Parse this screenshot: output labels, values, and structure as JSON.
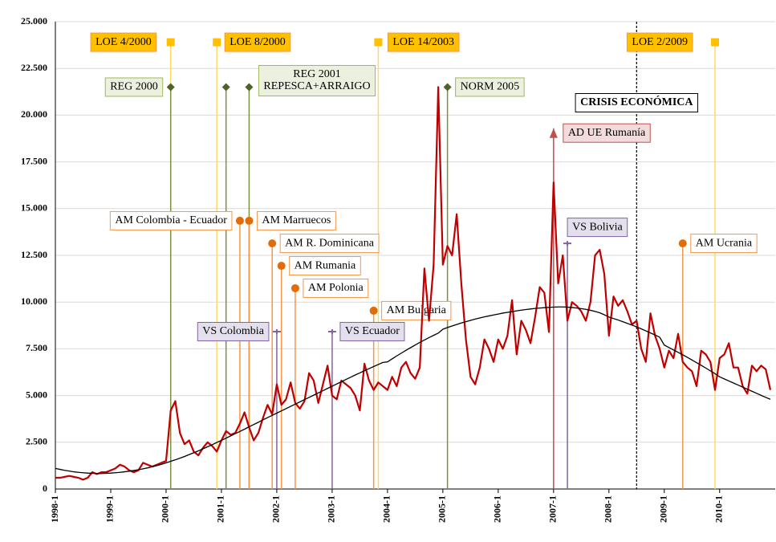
{
  "chart_data": {
    "type": "line",
    "categories": [
      "1998-1",
      null,
      null,
      null,
      null,
      null,
      null,
      null,
      null,
      null,
      null,
      null,
      "1999-1",
      null,
      null,
      null,
      null,
      null,
      null,
      null,
      null,
      null,
      null,
      null,
      "2000-1",
      null,
      null,
      null,
      null,
      null,
      null,
      null,
      null,
      null,
      null,
      null,
      "2001-1",
      null,
      null,
      null,
      null,
      null,
      null,
      null,
      null,
      null,
      null,
      null,
      "2002-1",
      null,
      null,
      null,
      null,
      null,
      null,
      null,
      null,
      null,
      null,
      null,
      "2003-1",
      null,
      null,
      null,
      null,
      null,
      null,
      null,
      null,
      null,
      null,
      null,
      "2004-1",
      null,
      null,
      null,
      null,
      null,
      null,
      null,
      null,
      null,
      null,
      null,
      "2005-1",
      null,
      null,
      null,
      null,
      null,
      null,
      null,
      null,
      null,
      null,
      null,
      "2006-1",
      null,
      null,
      null,
      null,
      null,
      null,
      null,
      null,
      null,
      null,
      null,
      "2007-1",
      null,
      null,
      null,
      null,
      null,
      null,
      null,
      null,
      null,
      null,
      null,
      "2008-1",
      null,
      null,
      null,
      null,
      null,
      null,
      null,
      null,
      null,
      null,
      null,
      "2009-1",
      null,
      null,
      null,
      null,
      null,
      null,
      null,
      null,
      null,
      null,
      null,
      "2010-1",
      null,
      null,
      null,
      null,
      null,
      null,
      null,
      null,
      null,
      null,
      null
    ],
    "series": [
      {
        "color": "#c00000",
        "values": [
          600,
          600,
          650,
          700,
          650,
          600,
          500,
          600,
          900,
          800,
          900,
          900,
          1000,
          1100,
          1300,
          1200,
          1000,
          900,
          1000,
          1400,
          1300,
          1200,
          1300,
          1400,
          1500,
          4200,
          4700,
          3000,
          2400,
          2600,
          2000,
          1800,
          2200,
          2500,
          2300,
          2000,
          2600,
          3100,
          2900,
          3000,
          3500,
          4100,
          3300,
          2600,
          3000,
          3800,
          4500,
          4000,
          5600,
          4500,
          4800,
          5700,
          4600,
          4300,
          4700,
          6200,
          5800,
          4600,
          5600,
          6600,
          5000,
          4800,
          5800,
          5600,
          5400,
          5000,
          4200,
          6700,
          5800,
          5300,
          5700,
          5500,
          5300,
          6000,
          5500,
          6500,
          6800,
          6200,
          5900,
          6500,
          11800,
          9000,
          12000,
          21500,
          12000,
          13000,
          12500,
          14700,
          11000,
          8000,
          6000,
          5600,
          6500,
          8000,
          7500,
          6800,
          8000,
          7500,
          8200,
          10100,
          7200,
          9000,
          8500,
          7800,
          9200,
          10800,
          10500,
          8400,
          16400,
          11000,
          12500,
          9000,
          10000,
          9800,
          9500,
          9000,
          10000,
          12500,
          12800,
          11500,
          8200,
          10300,
          9800,
          10100,
          9500,
          8800,
          9000,
          7500,
          6800,
          9400,
          8200,
          7500,
          6500,
          7400,
          7000,
          8300,
          6800,
          6500,
          6300,
          5500,
          7400,
          7200,
          6800,
          5300,
          7000,
          7200,
          7800,
          6500,
          6500,
          5500,
          5100,
          6600,
          6300,
          6600,
          6400,
          5300
        ]
      },
      {
        "color": "#000000",
        "values": [
          1100,
          1050,
          1000,
          960,
          920,
          890,
          870,
          850,
          840,
          830,
          830,
          840,
          850,
          870,
          890,
          920,
          950,
          990,
          1030,
          1080,
          1130,
          1190,
          1250,
          1320,
          1400,
          1480,
          1560,
          1650,
          1740,
          1840,
          1940,
          2040,
          2150,
          2260,
          2370,
          2490,
          2600,
          2720,
          2840,
          2960,
          3080,
          3200,
          3330,
          3450,
          3570,
          3700,
          3820,
          3940,
          4060,
          4180,
          4300,
          4420,
          4540,
          4660,
          4780,
          4900,
          5020,
          5140,
          5260,
          5380,
          5500,
          5620,
          5740,
          5860,
          5980,
          6100,
          6210,
          6330,
          6440,
          6550,
          6660,
          6770,
          6800,
          6960,
          7120,
          7270,
          7420,
          7560,
          7700,
          7840,
          7970,
          8100,
          8220,
          8340,
          8550,
          8640,
          8720,
          8800,
          8880,
          8950,
          9020,
          9090,
          9150,
          9210,
          9260,
          9310,
          9360,
          9410,
          9450,
          9490,
          9530,
          9570,
          9600,
          9630,
          9660,
          9680,
          9700,
          9720,
          9730,
          9740,
          9740,
          9730,
          9710,
          9680,
          9650,
          9610,
          9560,
          9500,
          9430,
          9320,
          9200,
          9120,
          9040,
          8950,
          8860,
          8770,
          8670,
          8570,
          8460,
          8350,
          8240,
          8120,
          7700,
          7570,
          7440,
          7310,
          7180,
          7040,
          6900,
          6760,
          6620,
          6470,
          6320,
          6170,
          6000,
          5890,
          5780,
          5670,
          5560,
          5450,
          5340,
          5230,
          5120,
          5010,
          4900,
          4800
        ]
      }
    ],
    "ylim": [
      0,
      25000
    ],
    "yticks": [
      0,
      {
        "value": 2500,
        "label": "2.500"
      },
      {
        "value": 5000,
        "label": "5.000"
      },
      {
        "value": 7500,
        "label": "7.500"
      },
      {
        "value": 10000,
        "label": "10.000"
      },
      {
        "value": 12500,
        "label": "12.500"
      },
      {
        "value": 15000,
        "label": "15.000"
      },
      {
        "value": 17500,
        "label": "17.500"
      },
      {
        "value": 20000,
        "label": "20.000"
      },
      {
        "value": 22500,
        "label": "22.500"
      },
      {
        "value": 25000,
        "label": "25.000"
      }
    ],
    "grid": true,
    "annotations": [
      {
        "text": [
          "LOE 4/2000"
        ],
        "dates": [
          "2000-2"
        ],
        "y": 23900,
        "marker": "square",
        "color": "#ffc000"
      },
      {
        "text": [
          "LOE 8/2000"
        ],
        "dates": [
          "2000-12"
        ],
        "y": 23900,
        "marker": "square",
        "color": "#ffc000"
      },
      {
        "text": [
          "LOE 14/2003"
        ],
        "dates": [
          "2003-11"
        ],
        "y": 23900,
        "marker": "square",
        "color": "#ffc000"
      },
      {
        "text": [
          "LOE 2/2009"
        ],
        "dates": [
          "2009-12"
        ],
        "y": 23900,
        "marker": "square",
        "color": "#ffc000"
      },
      {
        "text": [
          "REG 2000"
        ],
        "dates": [
          "2000-2"
        ],
        "y": 21500,
        "marker": "diamond",
        "color": "#4f6228"
      },
      {
        "text": [
          "REG 2001",
          "REPESCA+ARRAIGO"
        ],
        "dates": [
          "2001-2",
          "2001-7"
        ],
        "y": 21500,
        "marker": "diamond",
        "color": "#4f6228"
      },
      {
        "text": [
          "NORM 2005"
        ],
        "dates": [
          "2005-2"
        ],
        "y": 21500,
        "marker": "diamond",
        "color": "#4f6228"
      },
      {
        "text": [
          "AD UE Rumanía"
        ],
        "dates": [
          "2007-1"
        ],
        "y": 19300,
        "marker": "triangle",
        "color": "#c0504d"
      },
      {
        "text": [
          "VS Bolivia"
        ],
        "dates": [
          "2007-4"
        ],
        "y": 13140,
        "marker": "dash",
        "color": "#8064a2"
      },
      {
        "text": [
          "VS Colombia"
        ],
        "dates": [
          "2002-1"
        ],
        "y": 8420,
        "marker": "dash",
        "color": "#8064a2"
      },
      {
        "text": [
          "VS Ecuador"
        ],
        "dates": [
          "2003-1"
        ],
        "y": 8420,
        "marker": "dash",
        "color": "#8064a2"
      },
      {
        "text": [
          "AM Colombia - Ecuador"
        ],
        "dates": [
          "2001-5"
        ],
        "y": 14350,
        "marker": "circle",
        "color": "#e36c09"
      },
      {
        "text": [
          "AM Marruecos"
        ],
        "dates": [
          "2001-7"
        ],
        "y": 14350,
        "marker": "circle",
        "color": "#e36c09"
      },
      {
        "text": [
          "AM R. Dominicana"
        ],
        "dates": [
          "2001-12"
        ],
        "y": 13140,
        "marker": "circle",
        "color": "#e36c09"
      },
      {
        "text": [
          "AM Rumania"
        ],
        "dates": [
          "2002-2"
        ],
        "y": 11940,
        "marker": "circle",
        "color": "#e36c09"
      },
      {
        "text": [
          "AM Polonia"
        ],
        "dates": [
          "2002-5"
        ],
        "y": 10740,
        "marker": "circle",
        "color": "#e36c09"
      },
      {
        "text": [
          "AM Bulgaria"
        ],
        "dates": [
          "2003-10"
        ],
        "y": 9540,
        "marker": "circle",
        "color": "#e36c09"
      },
      {
        "text": [
          "AM Ucrania"
        ],
        "dates": [
          "2009-5"
        ],
        "y": 13140,
        "marker": "circle",
        "color": "#e36c09"
      },
      {
        "text": [
          "CRISIS ECONÓMICA"
        ],
        "dates": [
          "2008-7"
        ],
        "marker": "dashed-line",
        "color": "#000000"
      }
    ]
  }
}
